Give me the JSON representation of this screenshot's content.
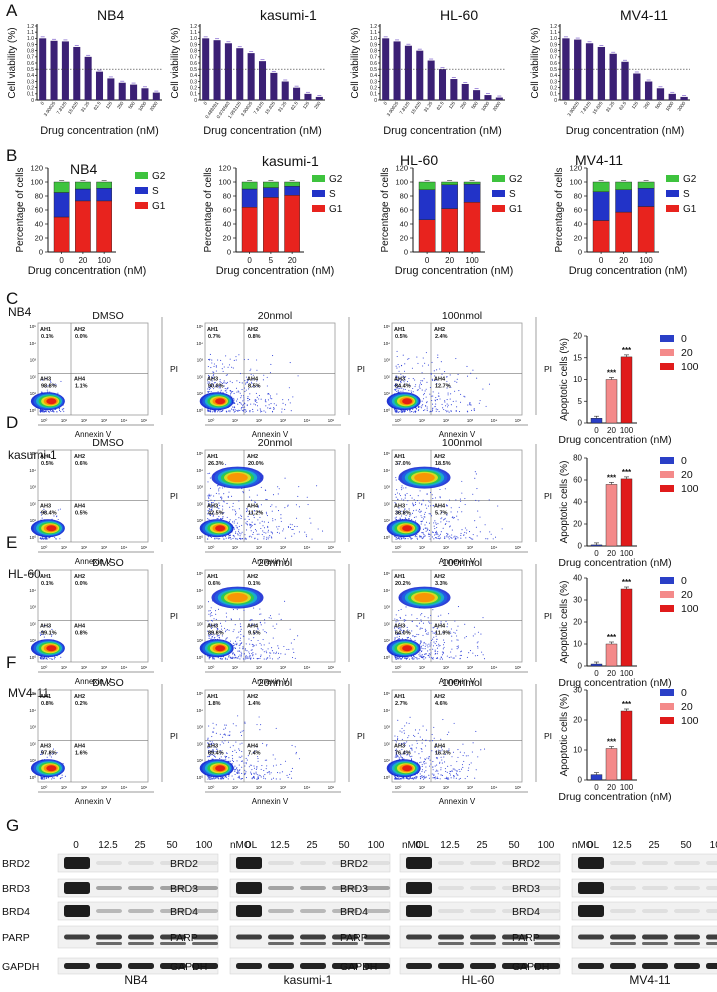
{
  "panels": {
    "A": "A",
    "B": "B",
    "C": "C",
    "D": "D",
    "E": "E",
    "F": "F",
    "G": "G"
  },
  "viability": {
    "ylabel": "Cell viability (%)",
    "xlabel": "Drug concentration (nM)",
    "yticks": [
      "0",
      "0.1",
      "0.2",
      "0.3",
      "0.4",
      "0.5",
      "0.6",
      "0.7",
      "0.8",
      "0.9",
      "1.0",
      "1.1",
      "1.2"
    ],
    "color": "#3b2075"
  },
  "cellcycle": {
    "ylabel": "Percentage of cells",
    "xlabel": "Drug concentration (nM)",
    "yticks": [
      "0",
      "20",
      "40",
      "60",
      "80",
      "100",
      "120"
    ],
    "legend": [
      "G2",
      "S",
      "G1"
    ],
    "colors": {
      "G1": "#e8231e",
      "S": "#2233c8",
      "G2": "#3ec33e"
    }
  },
  "apoptosis": {
    "ylabel": "Apoptotic cells (%)",
    "xlabel": "Drug concentration (nM)",
    "xticks": [
      "0",
      "20",
      "100"
    ],
    "legend": [
      "0",
      "20",
      "100"
    ],
    "colors": [
      "#2a3fc7",
      "#f48a8a",
      "#e01b1b"
    ],
    "stars": "***"
  },
  "flow": {
    "conditions": [
      "DMSO",
      "20nmol",
      "100nmol"
    ],
    "xaxis": "Annexin V",
    "yaxis": "PI",
    "quadrants": [
      "AH1",
      "AH2",
      "AH3",
      "AH4"
    ],
    "ticks": [
      "10⁵",
      "10⁴",
      "10³",
      "10²",
      "10¹",
      "10⁰"
    ]
  },
  "rows": [
    {
      "label": "NB4",
      "percents": [
        [
          "0.1%",
          "0.0%",
          "98.8%",
          "1.1%"
        ],
        [
          "0.7%",
          "0.8%",
          "90.0%",
          "8.5%"
        ],
        [
          "0.5%",
          "2.4%",
          "84.4%",
          "12.7%"
        ]
      ]
    },
    {
      "label": "kasumi-1",
      "percents": [
        [
          "0.5%",
          "0.6%",
          "98.4%",
          "0.5%"
        ],
        [
          "26.3%",
          "20.0%",
          "42.5%",
          "11.2%"
        ],
        [
          "37.0%",
          "18.5%",
          "38.8%",
          "5.7%"
        ]
      ]
    },
    {
      "label": "HL-60",
      "percents": [
        [
          "0.1%",
          "0.0%",
          "99.1%",
          "0.8%"
        ],
        [
          "0.6%",
          "0.1%",
          "89.8%",
          "9.5%"
        ],
        [
          "20.2%",
          "3.3%",
          "64.0%",
          "11.9%"
        ]
      ]
    },
    {
      "label": "MV4-11",
      "percents": [
        [
          "0.8%",
          "0.2%",
          "97.8%",
          "1.6%"
        ],
        [
          "1.8%",
          "1.4%",
          "89.4%",
          "7.4%"
        ],
        [
          "2.7%",
          "4.6%",
          "76.4%",
          "16.3%"
        ]
      ]
    }
  ],
  "chart_data": [
    {
      "type": "bar",
      "panel": "A",
      "title": "NB4",
      "xlabel": "Drug concentration (nM)",
      "ylabel": "Cell viability (%)",
      "ylim": [
        0,
        1.2
      ],
      "reference_line": 0.5,
      "categories": [
        "0",
        "3.90625",
        "7.8125",
        "15.625",
        "31.25",
        "62.5",
        "125",
        "250",
        "500",
        "1000",
        "2000"
      ],
      "values": [
        1.0,
        0.96,
        0.95,
        0.86,
        0.7,
        0.46,
        0.35,
        0.28,
        0.25,
        0.19,
        0.12
      ]
    },
    {
      "type": "bar",
      "panel": "A",
      "title": "kasumi-1",
      "xlabel": "Drug concentration (nM)",
      "ylabel": "Cell viability (%)",
      "ylim": [
        0,
        1.2
      ],
      "reference_line": 0.5,
      "categories": [
        "0",
        "0.488281",
        "0.976563",
        "1.953125",
        "3.90625",
        "7.8125",
        "15.625",
        "31.25",
        "62.5",
        "125",
        "250"
      ],
      "values": [
        1.0,
        0.97,
        0.92,
        0.84,
        0.76,
        0.63,
        0.44,
        0.3,
        0.2,
        0.1,
        0.05
      ]
    },
    {
      "type": "bar",
      "panel": "A",
      "title": "HL-60",
      "xlabel": "Drug concentration (nM)",
      "ylabel": "Cell viability (%)",
      "ylim": [
        0,
        1.2
      ],
      "reference_line": 0.5,
      "categories": [
        "0",
        "3.90625",
        "7.8125",
        "15.625",
        "31.25",
        "62.5",
        "125",
        "250",
        "500",
        "1000",
        "2000"
      ],
      "values": [
        1.0,
        0.95,
        0.88,
        0.8,
        0.64,
        0.5,
        0.34,
        0.26,
        0.16,
        0.08,
        0.04
      ]
    },
    {
      "type": "bar",
      "panel": "A",
      "title": "MV4-11",
      "xlabel": "Drug concentration (nM)",
      "ylabel": "Cell viability (%)",
      "ylim": [
        0,
        1.2
      ],
      "reference_line": 0.5,
      "categories": [
        "0",
        "3.90625",
        "7.8125",
        "15.625",
        "31.25",
        "62.5",
        "125",
        "250",
        "500",
        "1000",
        "2000"
      ],
      "values": [
        1.0,
        0.98,
        0.92,
        0.86,
        0.75,
        0.62,
        0.43,
        0.3,
        0.19,
        0.1,
        0.05
      ]
    },
    {
      "type": "bar",
      "panel": "B",
      "stacked": true,
      "title": "NB4",
      "xlabel": "Drug concentration (nM)",
      "ylabel": "Percentage of cells",
      "ylim": [
        0,
        120
      ],
      "categories": [
        "0",
        "20",
        "100"
      ],
      "series": [
        {
          "name": "G1",
          "values": [
            50,
            73,
            73
          ]
        },
        {
          "name": "S",
          "values": [
            35,
            17,
            18
          ]
        },
        {
          "name": "G2",
          "values": [
            15,
            10,
            9
          ]
        }
      ]
    },
    {
      "type": "bar",
      "panel": "B",
      "stacked": true,
      "title": "kasumi-1",
      "xlabel": "Drug concentration (nM)",
      "ylabel": "Percentage of cells",
      "ylim": [
        0,
        120
      ],
      "categories": [
        "0",
        "5",
        "20"
      ],
      "series": [
        {
          "name": "G1",
          "values": [
            64,
            78,
            81
          ]
        },
        {
          "name": "S",
          "values": [
            26,
            14,
            13
          ]
        },
        {
          "name": "G2",
          "values": [
            10,
            8,
            6
          ]
        }
      ]
    },
    {
      "type": "bar",
      "panel": "B",
      "stacked": true,
      "title": "HL-60",
      "xlabel": "Drug concentration (nM)",
      "ylabel": "Percentage of cells",
      "ylim": [
        0,
        120
      ],
      "categories": [
        "0",
        "20",
        "100"
      ],
      "series": [
        {
          "name": "G1",
          "values": [
            46,
            62,
            71
          ]
        },
        {
          "name": "S",
          "values": [
            43,
            34,
            26
          ]
        },
        {
          "name": "G2",
          "values": [
            11,
            4,
            3
          ]
        }
      ]
    },
    {
      "type": "bar",
      "panel": "B",
      "stacked": true,
      "title": "MV4-11",
      "xlabel": "Drug concentration (nM)",
      "ylabel": "Percentage of cells",
      "ylim": [
        0,
        120
      ],
      "categories": [
        "0",
        "20",
        "100"
      ],
      "series": [
        {
          "name": "G1",
          "values": [
            45,
            57,
            65
          ]
        },
        {
          "name": "S",
          "values": [
            41,
            32,
            26
          ]
        },
        {
          "name": "G2",
          "values": [
            14,
            11,
            9
          ]
        }
      ]
    },
    {
      "type": "bar",
      "panel": "C",
      "title": "NB4",
      "xlabel": "Drug concentration (nM)",
      "ylabel": "Apoptotic cells (%)",
      "ylim": [
        0,
        20
      ],
      "yticks": [
        "0",
        "5",
        "10",
        "15",
        "20"
      ],
      "categories": [
        "0",
        "20",
        "100"
      ],
      "values": [
        1.1,
        10.0,
        15.2
      ],
      "annotations": [
        "",
        "***",
        "***"
      ]
    },
    {
      "type": "bar",
      "panel": "D",
      "title": "kasumi-1",
      "xlabel": "Drug concentration (nM)",
      "ylabel": "Apoptotic cells (%)",
      "ylim": [
        0,
        80
      ],
      "yticks": [
        "0",
        "20",
        "40",
        "60",
        "80"
      ],
      "categories": [
        "0",
        "20",
        "100"
      ],
      "values": [
        1.0,
        56.0,
        61.0
      ],
      "annotations": [
        "",
        "***",
        "***"
      ]
    },
    {
      "type": "bar",
      "panel": "E",
      "title": "HL-60",
      "xlabel": "Drug concentration (nM)",
      "ylabel": "Apoptotic cells (%)",
      "ylim": [
        0,
        40
      ],
      "yticks": [
        "0",
        "10",
        "20",
        "30",
        "40"
      ],
      "categories": [
        "0",
        "20",
        "100"
      ],
      "values": [
        0.9,
        10.0,
        35.0
      ],
      "annotations": [
        "",
        "***",
        "***"
      ]
    },
    {
      "type": "bar",
      "panel": "F",
      "title": "MV4-11",
      "xlabel": "Drug concentration (nM)",
      "ylabel": "Apoptotic cells (%)",
      "ylim": [
        0,
        30
      ],
      "yticks": [
        "0",
        "10",
        "20",
        "30"
      ],
      "categories": [
        "0",
        "20",
        "100"
      ],
      "values": [
        1.8,
        10.5,
        23.0
      ],
      "annotations": [
        "",
        "***",
        "***"
      ]
    }
  ],
  "western": {
    "unit": "nMOL",
    "concentrations": [
      "0",
      "12.5",
      "25",
      "50",
      "100"
    ],
    "proteins": [
      "BRD2",
      "BRD3",
      "BRD4",
      "PARP",
      "GAPDH"
    ],
    "cells": [
      "NB4",
      "kasumi-1",
      "HL-60",
      "MV4-11"
    ]
  }
}
